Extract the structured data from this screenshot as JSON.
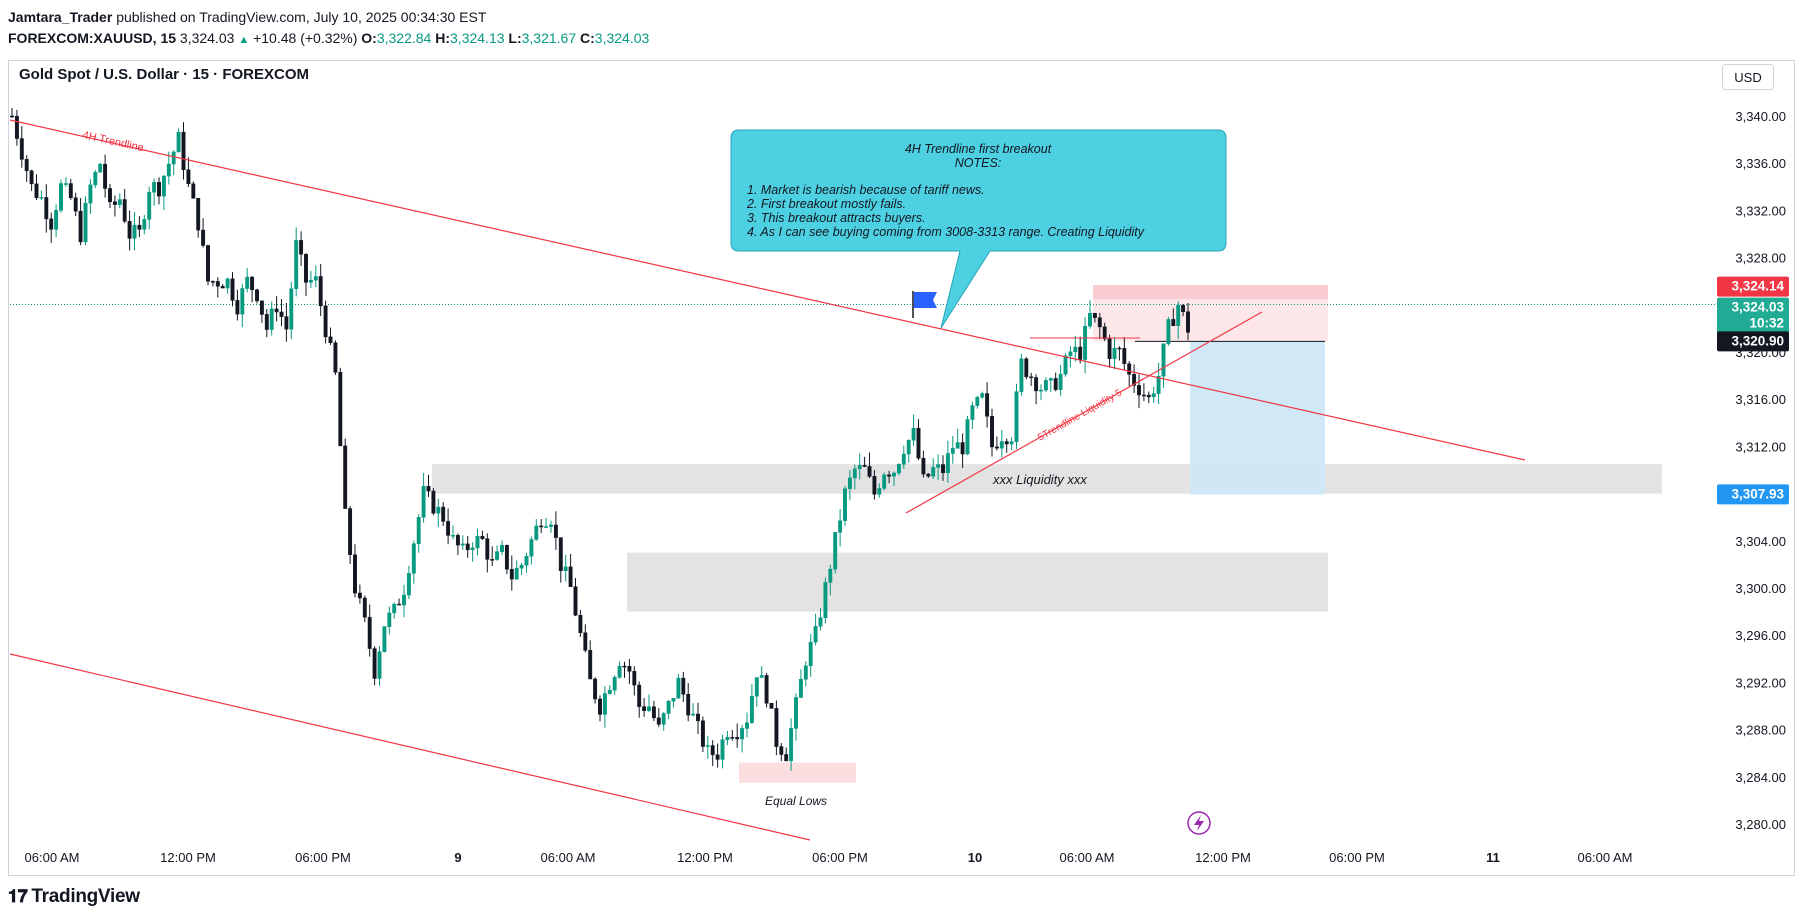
{
  "header": {
    "author": "Jamtara_Trader",
    "published": "published on TradingView.com, July 10, 2025 00:34:30 EST",
    "symbol": "FOREXCOM:XAUUSD, 15",
    "last": "3,324.03",
    "change": "+10.48 (+0.32%)",
    "o_label": "O:",
    "o": "3,322.84",
    "h_label": "H:",
    "h": "3,324.13",
    "l_label": "L:",
    "l": "3,321.67",
    "c_label": "C:",
    "c": "3,324.03"
  },
  "plot_title": "Gold Spot / U.S. Dollar · 15 · FOREXCOM",
  "currency_button": "USD",
  "brand": "TradingView",
  "colors": {
    "up": "#089981",
    "down": "#131722",
    "trendline": "#f23645",
    "callout": "#4dd0e1",
    "zone_grey": "#e0e0e0",
    "zone_pink": "#fadadd",
    "zone_blue": "#cfe8f7",
    "price_red": "#f23645",
    "price_green": "#22ab94",
    "price_black": "#131722",
    "price_blue": "#2196f3"
  },
  "chart_data": {
    "type": "candlestick",
    "title": "Gold Spot / U.S. Dollar · 15 · FOREXCOM",
    "ylim": [
      3278,
      3342
    ],
    "y_ticks": [
      "3,340.00",
      "3,336.00",
      "3,332.00",
      "3,328.00",
      "3,324.00",
      "3,320.00",
      "3,316.00",
      "3,312.00",
      "3,308.00",
      "3,304.00",
      "3,300.00",
      "3,296.00",
      "3,292.00",
      "3,288.00",
      "3,284.00",
      "3,280.00"
    ],
    "y_tick_values": [
      3340,
      3336,
      3332,
      3328,
      3324,
      3320,
      3316,
      3312,
      3308,
      3304,
      3300,
      3296,
      3292,
      3288,
      3284,
      3280
    ],
    "x_ticks": [
      "06:00 AM",
      "12:00 PM",
      "06:00 PM",
      "9",
      "06:00 AM",
      "12:00 PM",
      "06:00 PM",
      "10",
      "06:00 AM",
      "12:00 PM",
      "06:00 PM",
      "11",
      "06:00 AM"
    ],
    "price_path": [
      [
        0,
        3340
      ],
      [
        2,
        3337
      ],
      [
        4,
        3334
      ],
      [
        6,
        3333
      ],
      [
        8,
        3331
      ],
      [
        10,
        3334
      ],
      [
        12,
        3333
      ],
      [
        14,
        3330
      ],
      [
        16,
        3334
      ],
      [
        18,
        3336
      ],
      [
        20,
        3332
      ],
      [
        22,
        3333
      ],
      [
        24,
        3330
      ],
      [
        26,
        3330
      ],
      [
        28,
        3334
      ],
      [
        30,
        3334
      ],
      [
        32,
        3336
      ],
      [
        34,
        3338
      ],
      [
        36,
        3334
      ],
      [
        38,
        3331
      ],
      [
        40,
        3326
      ],
      [
        42,
        3326
      ],
      [
        44,
        3326
      ],
      [
        46,
        3324
      ],
      [
        48,
        3326
      ],
      [
        50,
        3325
      ],
      [
        52,
        3322
      ],
      [
        54,
        3324
      ],
      [
        56,
        3322
      ],
      [
        58,
        3329
      ],
      [
        60,
        3326
      ],
      [
        62,
        3326
      ],
      [
        64,
        3322
      ],
      [
        66,
        3318
      ],
      [
        68,
        3306
      ],
      [
        70,
        3300
      ],
      [
        72,
        3297
      ],
      [
        74,
        3293
      ],
      [
        76,
        3297
      ],
      [
        78,
        3298
      ],
      [
        80,
        3300
      ],
      [
        82,
        3304
      ],
      [
        84,
        3308
      ],
      [
        86,
        3307
      ],
      [
        88,
        3306
      ],
      [
        90,
        3304
      ],
      [
        92,
        3303
      ],
      [
        94,
        3304
      ],
      [
        96,
        3304
      ],
      [
        98,
        3302
      ],
      [
        100,
        3303
      ],
      [
        102,
        3301
      ],
      [
        104,
        3302
      ],
      [
        106,
        3304
      ],
      [
        108,
        3306
      ],
      [
        110,
        3306
      ],
      [
        112,
        3302
      ],
      [
        114,
        3300
      ],
      [
        116,
        3296
      ],
      [
        118,
        3292
      ],
      [
        120,
        3290
      ],
      [
        122,
        3292
      ],
      [
        124,
        3294
      ],
      [
        126,
        3293
      ],
      [
        128,
        3290
      ],
      [
        130,
        3290
      ],
      [
        132,
        3288
      ],
      [
        134,
        3290
      ],
      [
        136,
        3292
      ],
      [
        138,
        3290
      ],
      [
        140,
        3288
      ],
      [
        142,
        3286
      ],
      [
        144,
        3286
      ],
      [
        146,
        3288
      ],
      [
        148,
        3288
      ],
      [
        150,
        3289
      ],
      [
        152,
        3293
      ],
      [
        154,
        3291
      ],
      [
        156,
        3287
      ],
      [
        158,
        3286
      ],
      [
        160,
        3290
      ],
      [
        162,
        3294
      ],
      [
        164,
        3296
      ],
      [
        166,
        3300
      ],
      [
        168,
        3304
      ],
      [
        170,
        3308
      ],
      [
        172,
        3310
      ],
      [
        174,
        3310
      ],
      [
        176,
        3308
      ],
      [
        178,
        3310
      ],
      [
        180,
        3310
      ],
      [
        182,
        3312
      ],
      [
        184,
        3313
      ],
      [
        186,
        3309
      ],
      [
        188,
        3310
      ],
      [
        190,
        3310
      ],
      [
        192,
        3312
      ],
      [
        194,
        3312
      ],
      [
        196,
        3315
      ],
      [
        198,
        3316
      ],
      [
        200,
        3312
      ],
      [
        202,
        3313
      ],
      [
        204,
        3313
      ],
      [
        206,
        3319
      ],
      [
        208,
        3318
      ],
      [
        210,
        3317
      ],
      [
        212,
        3317
      ],
      [
        214,
        3318
      ],
      [
        216,
        3320
      ],
      [
        218,
        3320
      ],
      [
        220,
        3323
      ],
      [
        222,
        3322
      ],
      [
        224,
        3320
      ],
      [
        226,
        3320
      ],
      [
        228,
        3318
      ],
      [
        230,
        3317
      ],
      [
        232,
        3316
      ],
      [
        234,
        3318
      ],
      [
        236,
        3322
      ],
      [
        238,
        3324
      ],
      [
        240,
        3322
      ]
    ],
    "zones": [
      {
        "label": "xxx Liquidity  xxx",
        "low": 3308,
        "high": 3310.5
      },
      {
        "label": "",
        "low": 3298,
        "high": 3303
      },
      {
        "label": "Equal Lows",
        "low": 3283.5,
        "high": 3285.2
      }
    ],
    "trendlines": [
      "4H Trendline",
      "5Trendline Liquidity 5"
    ],
    "annotations": {
      "callout_title": "4H Trendline first breakout",
      "callout_sub": "NOTES:",
      "notes": [
        "1. Market is bearish because of tariff news.",
        "2. First breakout mostly fails.",
        "3. This breakout attracts buyers.",
        "4. As I can see buying coming from 3008-3313 range. Creating Liquidity"
      ],
      "trendline_4h": "4H Trendline",
      "trendline_liq": "5Trendline Liquidity 5",
      "liquidity": "xxx Liquidity  xxx",
      "equal_lows": "Equal Lows"
    },
    "position": {
      "type": "short",
      "stop": 3324.14,
      "entry": 3320.9,
      "target": 3307.93
    },
    "price_labels": {
      "stop": "3,324.14",
      "current": "3,324.03",
      "countdown": "10:32",
      "entry": "3,320.90",
      "target": "3,307.93"
    }
  }
}
